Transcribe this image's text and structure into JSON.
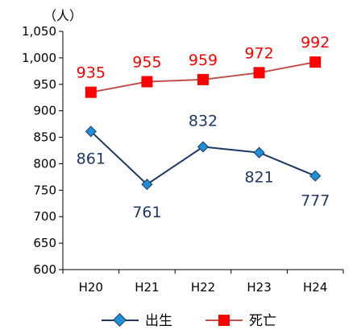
{
  "chart_data": {
    "type": "line",
    "title": "",
    "xlabel": "",
    "ylabel": "（人）",
    "categories": [
      "H20",
      "H21",
      "H22",
      "H23",
      "H24"
    ],
    "ylim": [
      600,
      1050
    ],
    "yticks": [
      600,
      650,
      700,
      750,
      800,
      850,
      900,
      950,
      1000,
      1050
    ],
    "ytick_labels": [
      "600",
      "650",
      "700",
      "750",
      "800",
      "850",
      "900",
      "950",
      "1,000",
      "1,050"
    ],
    "grid": false,
    "legend_position": "bottom",
    "series": [
      {
        "name": "出生",
        "values": [
          861,
          761,
          832,
          821,
          777
        ],
        "labels": [
          "861",
          "761",
          "832",
          "821",
          "777"
        ],
        "marker": "diamond",
        "line_color": "#1f3864",
        "marker_color": "#1e90d8",
        "label_color": "#1f3864"
      },
      {
        "name": "死亡",
        "values": [
          935,
          955,
          959,
          972,
          992
        ],
        "labels": [
          "935",
          "955",
          "959",
          "972",
          "992"
        ],
        "marker": "square",
        "line_color": "#c0504d",
        "marker_color": "#ff0000",
        "label_color": "#ff0000"
      }
    ]
  }
}
